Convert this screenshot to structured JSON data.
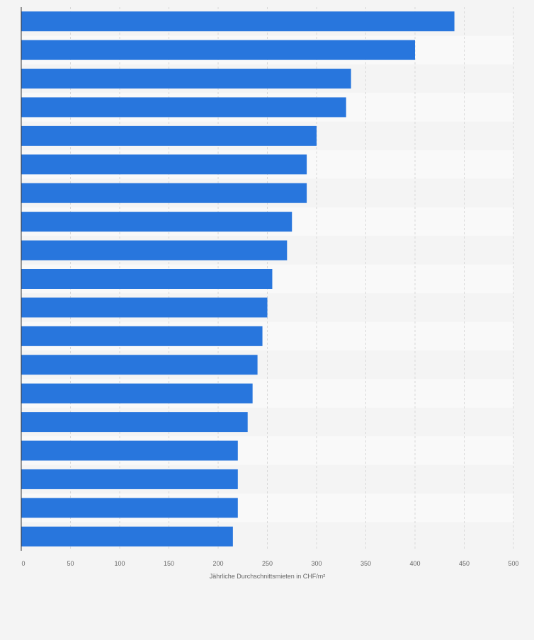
{
  "chart_data": {
    "type": "bar",
    "orientation": "horizontal",
    "categories": [
      "",
      "",
      "",
      "",
      "",
      "",
      "",
      "",
      "",
      "",
      "",
      "",
      "",
      "",
      "",
      "",
      "",
      "",
      ""
    ],
    "values": [
      440,
      400,
      335,
      330,
      300,
      290,
      290,
      275,
      270,
      255,
      250,
      245,
      240,
      235,
      230,
      220,
      220,
      220,
      215
    ],
    "xlabel": "Jährliche Durchschnittsmieten in CHF/m²",
    "ylabel": "",
    "xlim": [
      0,
      500
    ],
    "ticks": [
      0,
      50,
      100,
      150,
      200,
      250,
      300,
      350,
      400,
      450,
      500
    ],
    "tick_labels": [
      "0",
      "50",
      "100",
      "150",
      "200",
      "250",
      "300",
      "350",
      "400",
      "450",
      "500"
    ],
    "grid": true,
    "bar_color": "#2876dd"
  }
}
